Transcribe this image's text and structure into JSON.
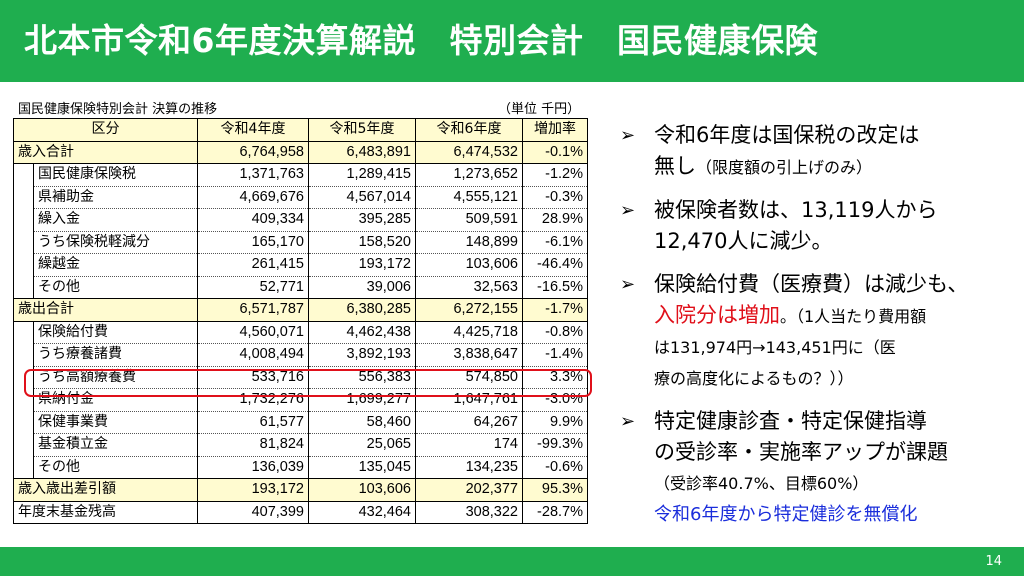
{
  "header": {
    "title": "北本市令和6年度決算解説　特別会計　国民健康保険"
  },
  "table": {
    "caption": "国民健康保険特別会計 決算の推移",
    "unit": "（単位 千円）",
    "headers": [
      "区分",
      "令和4年度",
      "令和5年度",
      "令和6年度",
      "増加率"
    ],
    "rows": [
      {
        "label": "歳入合計",
        "r4": "6,764,958",
        "r5": "6,483,891",
        "r6": "6,474,532",
        "rate": "-0.1%"
      },
      {
        "label": "国民健康保険税",
        "r4": "1,371,763",
        "r5": "1,289,415",
        "r6": "1,273,652",
        "rate": "-1.2%"
      },
      {
        "label": "県補助金",
        "r4": "4,669,676",
        "r5": "4,567,014",
        "r6": "4,555,121",
        "rate": "-0.3%"
      },
      {
        "label": "繰入金",
        "r4": "409,334",
        "r5": "395,285",
        "r6": "509,591",
        "rate": "28.9%"
      },
      {
        "label": "うち保険税軽減分",
        "r4": "165,170",
        "r5": "158,520",
        "r6": "148,899",
        "rate": "-6.1%"
      },
      {
        "label": "繰越金",
        "r4": "261,415",
        "r5": "193,172",
        "r6": "103,606",
        "rate": "-46.4%"
      },
      {
        "label": "その他",
        "r4": "52,771",
        "r5": "39,006",
        "r6": "32,563",
        "rate": "-16.5%"
      },
      {
        "label": "歳出合計",
        "r4": "6,571,787",
        "r5": "6,380,285",
        "r6": "6,272,155",
        "rate": "-1.7%"
      },
      {
        "label": "保険給付費",
        "r4": "4,560,071",
        "r5": "4,462,438",
        "r6": "4,425,718",
        "rate": "-0.8%"
      },
      {
        "label": "うち療養諸費",
        "r4": "4,008,494",
        "r5": "3,892,193",
        "r6": "3,838,647",
        "rate": "-1.4%"
      },
      {
        "label": "うち高額療養費",
        "r4": "533,716",
        "r5": "556,383",
        "r6": "574,850",
        "rate": "3.3%"
      },
      {
        "label": "県納付金",
        "r4": "1,732,276",
        "r5": "1,699,277",
        "r6": "1,647,761",
        "rate": "-3.0%"
      },
      {
        "label": "保健事業費",
        "r4": "61,577",
        "r5": "58,460",
        "r6": "64,267",
        "rate": "9.9%"
      },
      {
        "label": "基金積立金",
        "r4": "81,824",
        "r5": "25,065",
        "r6": "174",
        "rate": "-99.3%"
      },
      {
        "label": "その他",
        "r4": "136,039",
        "r5": "135,045",
        "r6": "134,235",
        "rate": "-0.6%"
      },
      {
        "label": "歳入歳出差引額",
        "r4": "193,172",
        "r5": "103,606",
        "r6": "202,377",
        "rate": "95.3%"
      },
      {
        "label": "年度末基金残高",
        "r4": "407,399",
        "r5": "432,464",
        "r6": "308,322",
        "rate": "-28.7%"
      }
    ]
  },
  "bullets": {
    "b1": {
      "line1": "令和6年度は国保税の改定は",
      "line2_main": "無し",
      "line2_small": "（限度額の引上げのみ）"
    },
    "b2": {
      "line1": "被保険者数は、13,119人から",
      "line2": "12,470人に減少。"
    },
    "b3": {
      "line1": "保険給付費（医療費）は減少も、",
      "line2_red": "入院分は増加",
      "line2_small": "。（1人当たり費用額",
      "line3": "は131,974円→143,451円に（医",
      "line4": "療の高度化によるもの？））"
    },
    "b4": {
      "line1": "特定健康診査・特定保健指導",
      "line2": "の受診率・実施率アップが課題",
      "line3": "（受診率40.7%、目標60%）",
      "line4": "令和6年度から特定健診を無償化"
    }
  },
  "footer": {
    "page": "14"
  },
  "colors": {
    "header_bg": "#1fae4f",
    "total_row_bg": "#fffbd0",
    "highlight": "#e0101a",
    "blue_text": "#1a2ddb"
  }
}
